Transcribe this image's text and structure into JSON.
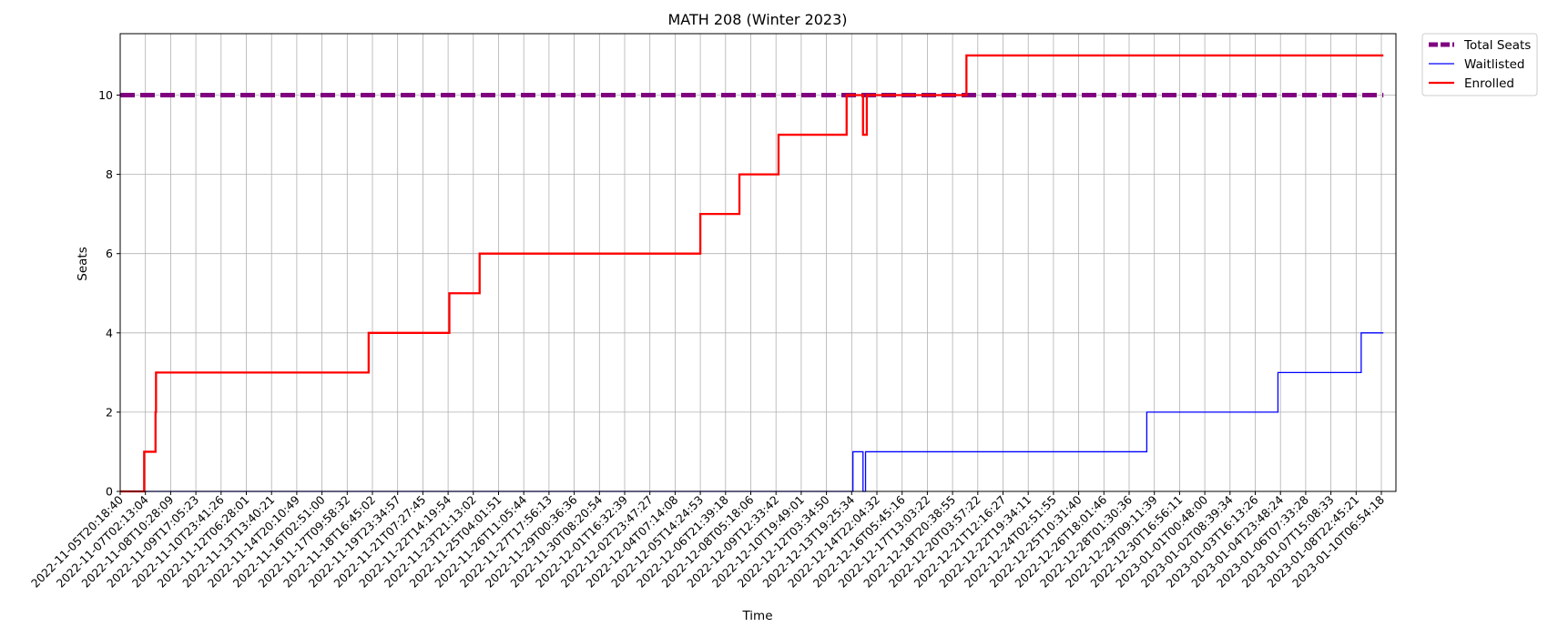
{
  "chart_data": {
    "type": "line",
    "title": "MATH 208 (Winter 2023)",
    "xlabel": "Time",
    "ylabel": "Seats",
    "ylim": [
      0,
      11.55
    ],
    "yticks": [
      0,
      2,
      4,
      6,
      8,
      10
    ],
    "grid": true,
    "legend_position": "outside-top-right",
    "x_ticks": [
      "2022-11-05T20:18:40",
      "2022-11-07T02:13:04",
      "2022-11-08T10:28:09",
      "2022-11-09T17:05:23",
      "2022-11-10T23:41:26",
      "2022-11-12T06:28:01",
      "2022-11-13T13:40:21",
      "2022-11-14T20:10:49",
      "2022-11-16T02:51:00",
      "2022-11-17T09:58:32",
      "2022-11-18T16:45:02",
      "2022-11-19T23:34:57",
      "2022-11-21T07:27:45",
      "2022-11-22T14:19:54",
      "2022-11-23T21:13:02",
      "2022-11-25T04:01:51",
      "2022-11-26T11:05:44",
      "2022-11-27T17:56:13",
      "2022-11-29T00:36:36",
      "2022-11-30T08:20:54",
      "2022-12-01T16:32:39",
      "2022-12-02T23:47:27",
      "2022-12-04T07:14:08",
      "2022-12-05T14:24:53",
      "2022-12-06T21:39:18",
      "2022-12-08T05:18:06",
      "2022-12-09T12:33:42",
      "2022-12-10T19:49:01",
      "2022-12-12T03:34:50",
      "2022-12-13T19:25:34",
      "2022-12-14T22:04:32",
      "2022-12-16T05:45:16",
      "2022-12-17T13:03:22",
      "2022-12-18T20:38:55",
      "2022-12-20T03:57:22",
      "2022-12-21T12:16:27",
      "2022-12-22T19:34:11",
      "2022-12-24T02:51:55",
      "2022-12-25T10:31:40",
      "2022-12-26T18:01:46",
      "2022-12-28T01:30:36",
      "2022-12-29T09:11:39",
      "2022-12-30T16:56:11",
      "2023-01-01T00:48:00",
      "2023-01-02T08:39:34",
      "2023-01-03T16:13:26",
      "2023-01-04T23:48:24",
      "2023-01-06T07:33:28",
      "2023-01-07T15:08:33",
      "2023-01-08T22:45:21",
      "2023-01-10T06:54:18"
    ],
    "x_end_index": 50.08,
    "series": [
      {
        "name": "Total Seats",
        "color": "#800080",
        "style": "dashed",
        "points": [
          [
            0,
            10
          ],
          [
            50.08,
            10
          ]
        ]
      },
      {
        "name": "Waitlisted",
        "color": "#0000ff",
        "style": "solid",
        "points": [
          [
            0,
            0
          ],
          [
            29.05,
            0
          ],
          [
            29.05,
            1
          ],
          [
            29.45,
            1
          ],
          [
            29.45,
            0
          ],
          [
            29.55,
            0
          ],
          [
            29.55,
            1
          ],
          [
            40.7,
            1
          ],
          [
            40.7,
            2
          ],
          [
            45.9,
            2
          ],
          [
            45.9,
            3
          ],
          [
            49.2,
            3
          ],
          [
            49.2,
            4
          ],
          [
            50.08,
            4
          ]
        ]
      },
      {
        "name": "Enrolled",
        "color": "#ff0000",
        "style": "solid",
        "points": [
          [
            0,
            0
          ],
          [
            0.95,
            0
          ],
          [
            0.95,
            1
          ],
          [
            1.4,
            1
          ],
          [
            1.4,
            2
          ],
          [
            1.42,
            2
          ],
          [
            1.42,
            3
          ],
          [
            9.85,
            3
          ],
          [
            9.85,
            4
          ],
          [
            13.05,
            4
          ],
          [
            13.05,
            5
          ],
          [
            14.25,
            5
          ],
          [
            14.25,
            6
          ],
          [
            23.0,
            6
          ],
          [
            23.0,
            7
          ],
          [
            24.55,
            7
          ],
          [
            24.55,
            8
          ],
          [
            26.1,
            8
          ],
          [
            26.1,
            9
          ],
          [
            28.8,
            9
          ],
          [
            28.8,
            10
          ],
          [
            29.45,
            10
          ],
          [
            29.45,
            9
          ],
          [
            29.6,
            9
          ],
          [
            29.6,
            10
          ],
          [
            33.55,
            10
          ],
          [
            33.55,
            11
          ],
          [
            50.08,
            11
          ]
        ]
      }
    ]
  }
}
